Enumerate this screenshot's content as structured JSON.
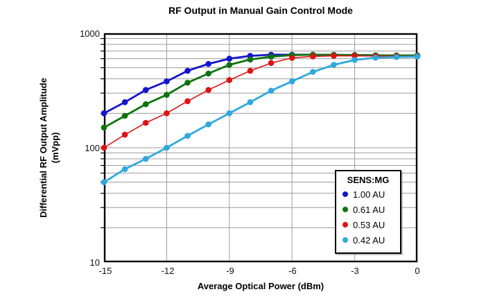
{
  "title": "RF Output in Manual Gain Control Mode",
  "x_axis": {
    "label": "Average Optical Power (dBm)",
    "ticks": [
      "-15",
      "-12",
      "-9",
      "-6",
      "-3",
      "0"
    ]
  },
  "y_axis": {
    "label_line1": "Differential RF Output Amplitude",
    "label_line2": "(mVpp)",
    "ticks": [
      "1000",
      "100",
      "10"
    ]
  },
  "legend": {
    "title": "SENS:MG"
  },
  "colors": {
    "grid": "#9C9C9C",
    "frame": "#000000",
    "background": "#FFFFFF"
  },
  "chart_data": {
    "type": "line",
    "title": "RF Output in Manual Gain Control Mode",
    "xlabel": "Average Optical Power (dBm)",
    "ylabel": "Differential RF Output Amplitude (mVpp)",
    "x_scale": "linear",
    "y_scale": "log",
    "xlim": [
      -15,
      0
    ],
    "ylim": [
      10,
      1000
    ],
    "x_major_ticks": [
      -15,
      -12,
      -9,
      -6,
      -3,
      0
    ],
    "y_major_ticks": [
      10,
      100,
      1000
    ],
    "grid": true,
    "legend_position": "lower right",
    "marker": "circle",
    "x": [
      -15,
      -14,
      -13,
      -12,
      -11,
      -10,
      -9,
      -8,
      -7,
      -6,
      -5,
      -4,
      -3,
      -2,
      -1,
      0
    ],
    "series": [
      {
        "name": "1.00 AU",
        "color": "#1414CC",
        "line_width": 2.8,
        "values": [
          200,
          250,
          320,
          380,
          470,
          540,
          600,
          635,
          650,
          650,
          650,
          648,
          645,
          642,
          640,
          640
        ]
      },
      {
        "name": "0.61 AU",
        "color": "#0E730E",
        "line_width": 2.8,
        "values": [
          150,
          190,
          240,
          290,
          370,
          445,
          530,
          590,
          625,
          645,
          650,
          648,
          645,
          642,
          640,
          640
        ]
      },
      {
        "name": "0.53 AU",
        "color": "#DD1414",
        "line_width": 1.6,
        "values": [
          100,
          130,
          165,
          200,
          255,
          320,
          390,
          470,
          550,
          610,
          628,
          635,
          635,
          632,
          630,
          630
        ]
      },
      {
        "name": "0.42 AU",
        "color": "#2FA8DC",
        "line_width": 2.8,
        "values": [
          50,
          65,
          80,
          100,
          127,
          160,
          200,
          250,
          315,
          380,
          460,
          530,
          585,
          612,
          620,
          625
        ]
      }
    ]
  }
}
